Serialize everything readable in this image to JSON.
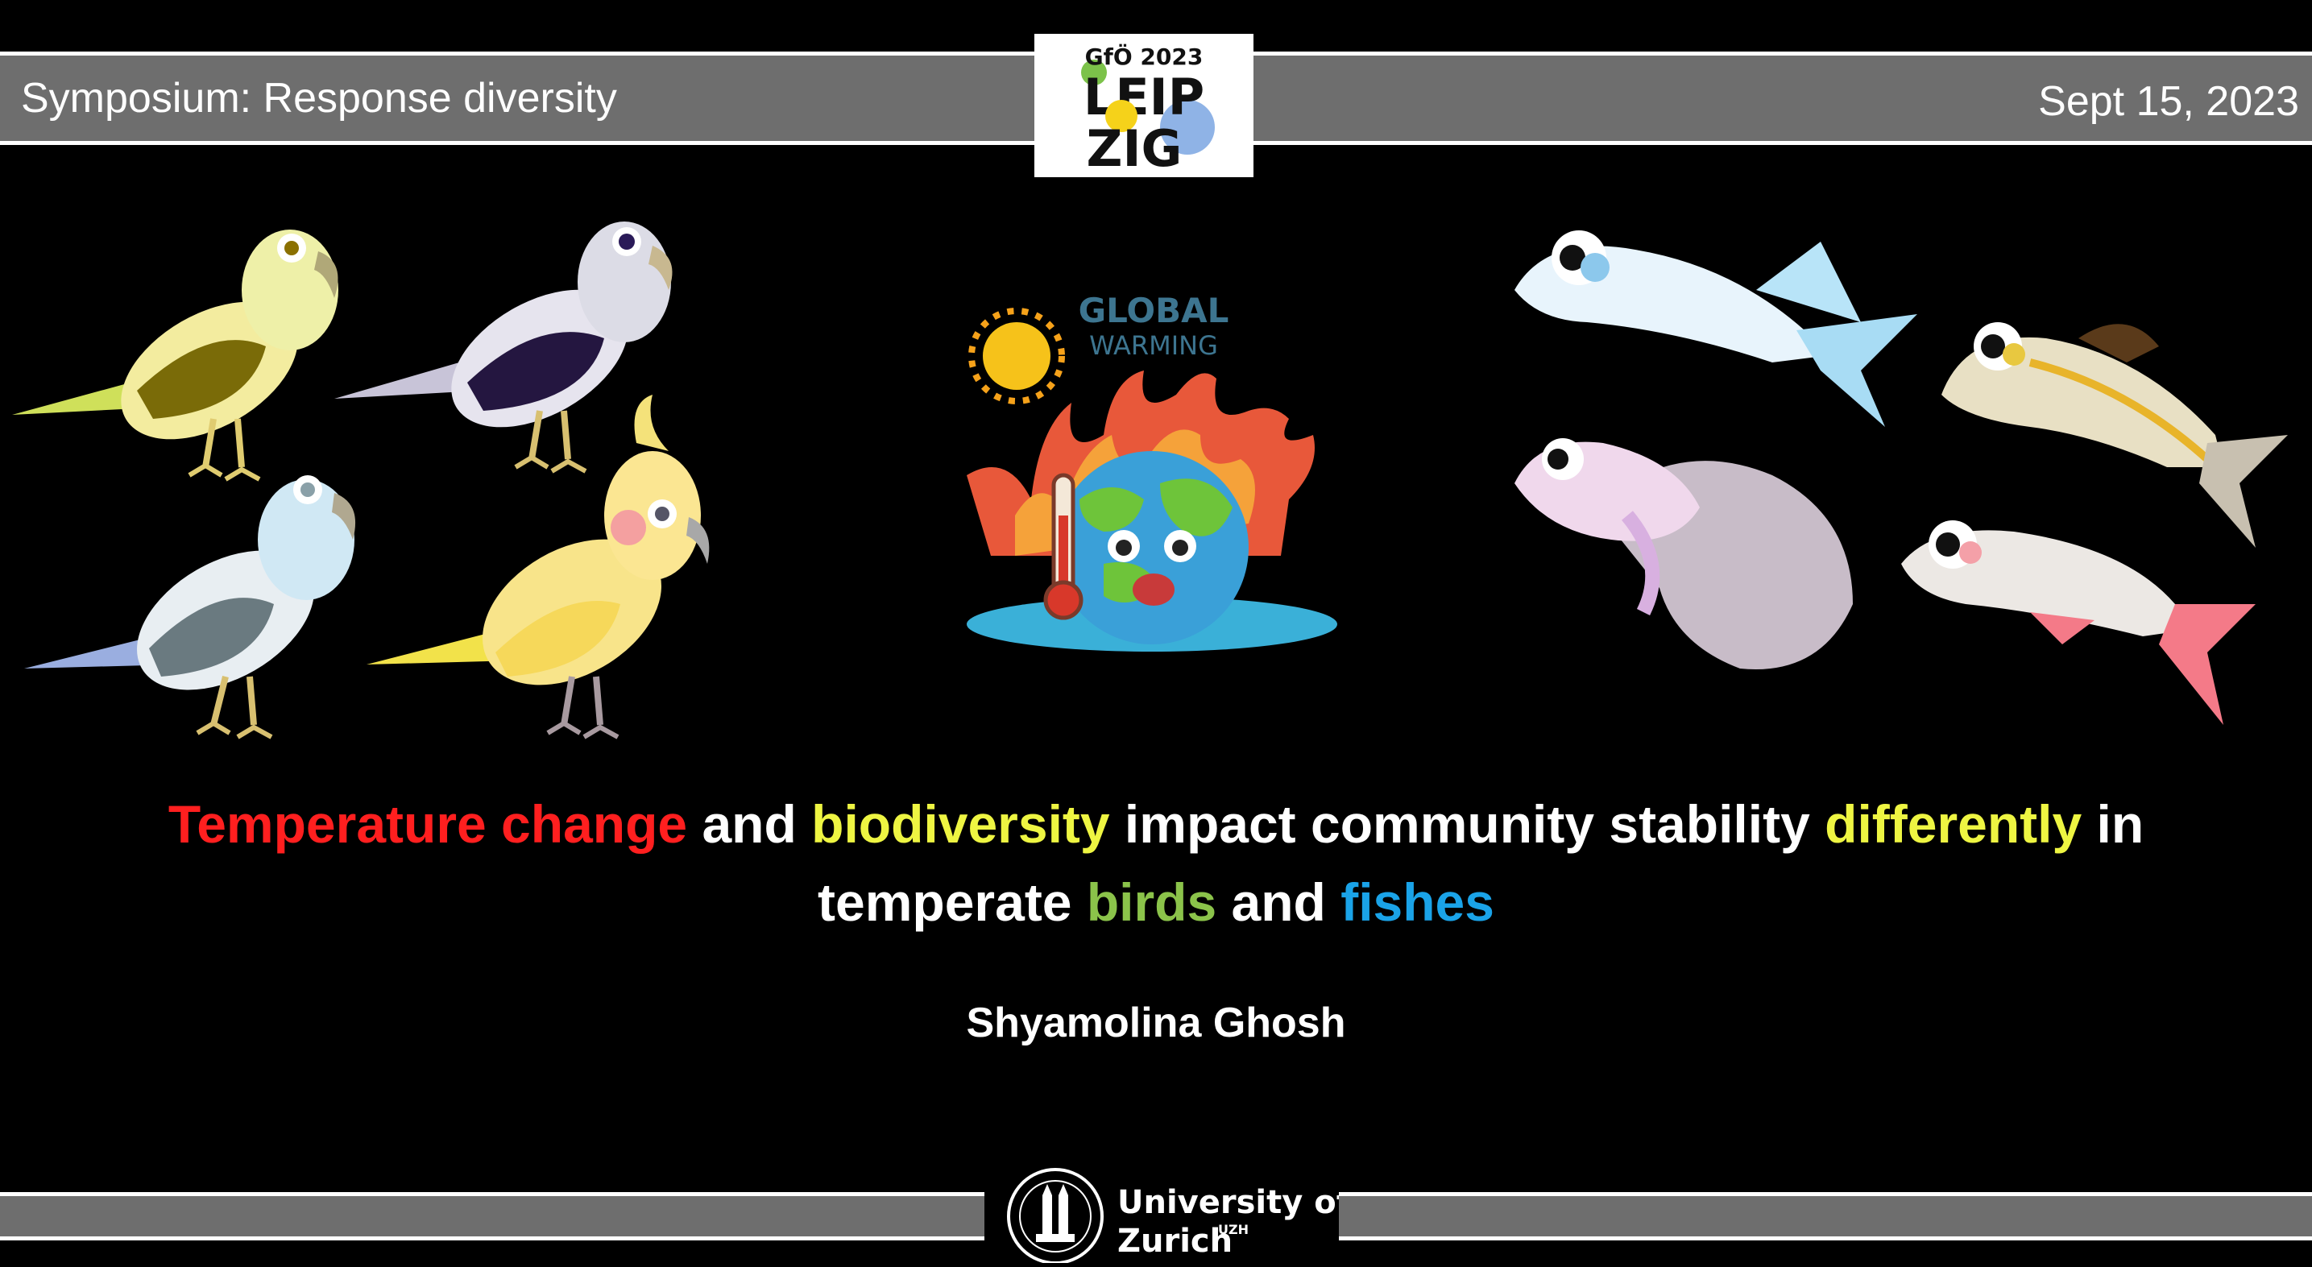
{
  "header": {
    "left_text": "Symposium: Response diversity",
    "right_text": "Sept 15, 2023",
    "logo": {
      "line1": "GfÖ 2023",
      "line2": "LEIP",
      "line3": "ZIG"
    }
  },
  "illustrations": {
    "global_warming": {
      "line1": "GLOBAL",
      "line2": "WARMING"
    }
  },
  "title": {
    "line1": [
      {
        "text": "Temperature change",
        "color": "#ff1f1f"
      },
      {
        "text": " and ",
        "color": "#ffffff"
      },
      {
        "text": "biodiversity",
        "color": "#eef542"
      },
      {
        "text": " impact community stability ",
        "color": "#ffffff"
      },
      {
        "text": "differently",
        "color": "#eef542"
      },
      {
        "text": " in",
        "color": "#ffffff"
      }
    ],
    "line2": [
      {
        "text": "temperate ",
        "color": "#ffffff"
      },
      {
        "text": "birds",
        "color": "#8bc34a"
      },
      {
        "text": " and ",
        "color": "#ffffff"
      },
      {
        "text": "fishes",
        "color": "#1aa3e8"
      }
    ]
  },
  "author": "Shyamolina Ghosh",
  "footer": {
    "university_line1": "University of",
    "university_line2": "Zurich",
    "university_sup": "UZH"
  },
  "colors": {
    "accent_red": "#ff1f1f",
    "accent_yellow": "#eef542",
    "accent_green": "#8bc34a",
    "accent_blue": "#1aa3e8",
    "band_gray": "#6e6e6e"
  }
}
